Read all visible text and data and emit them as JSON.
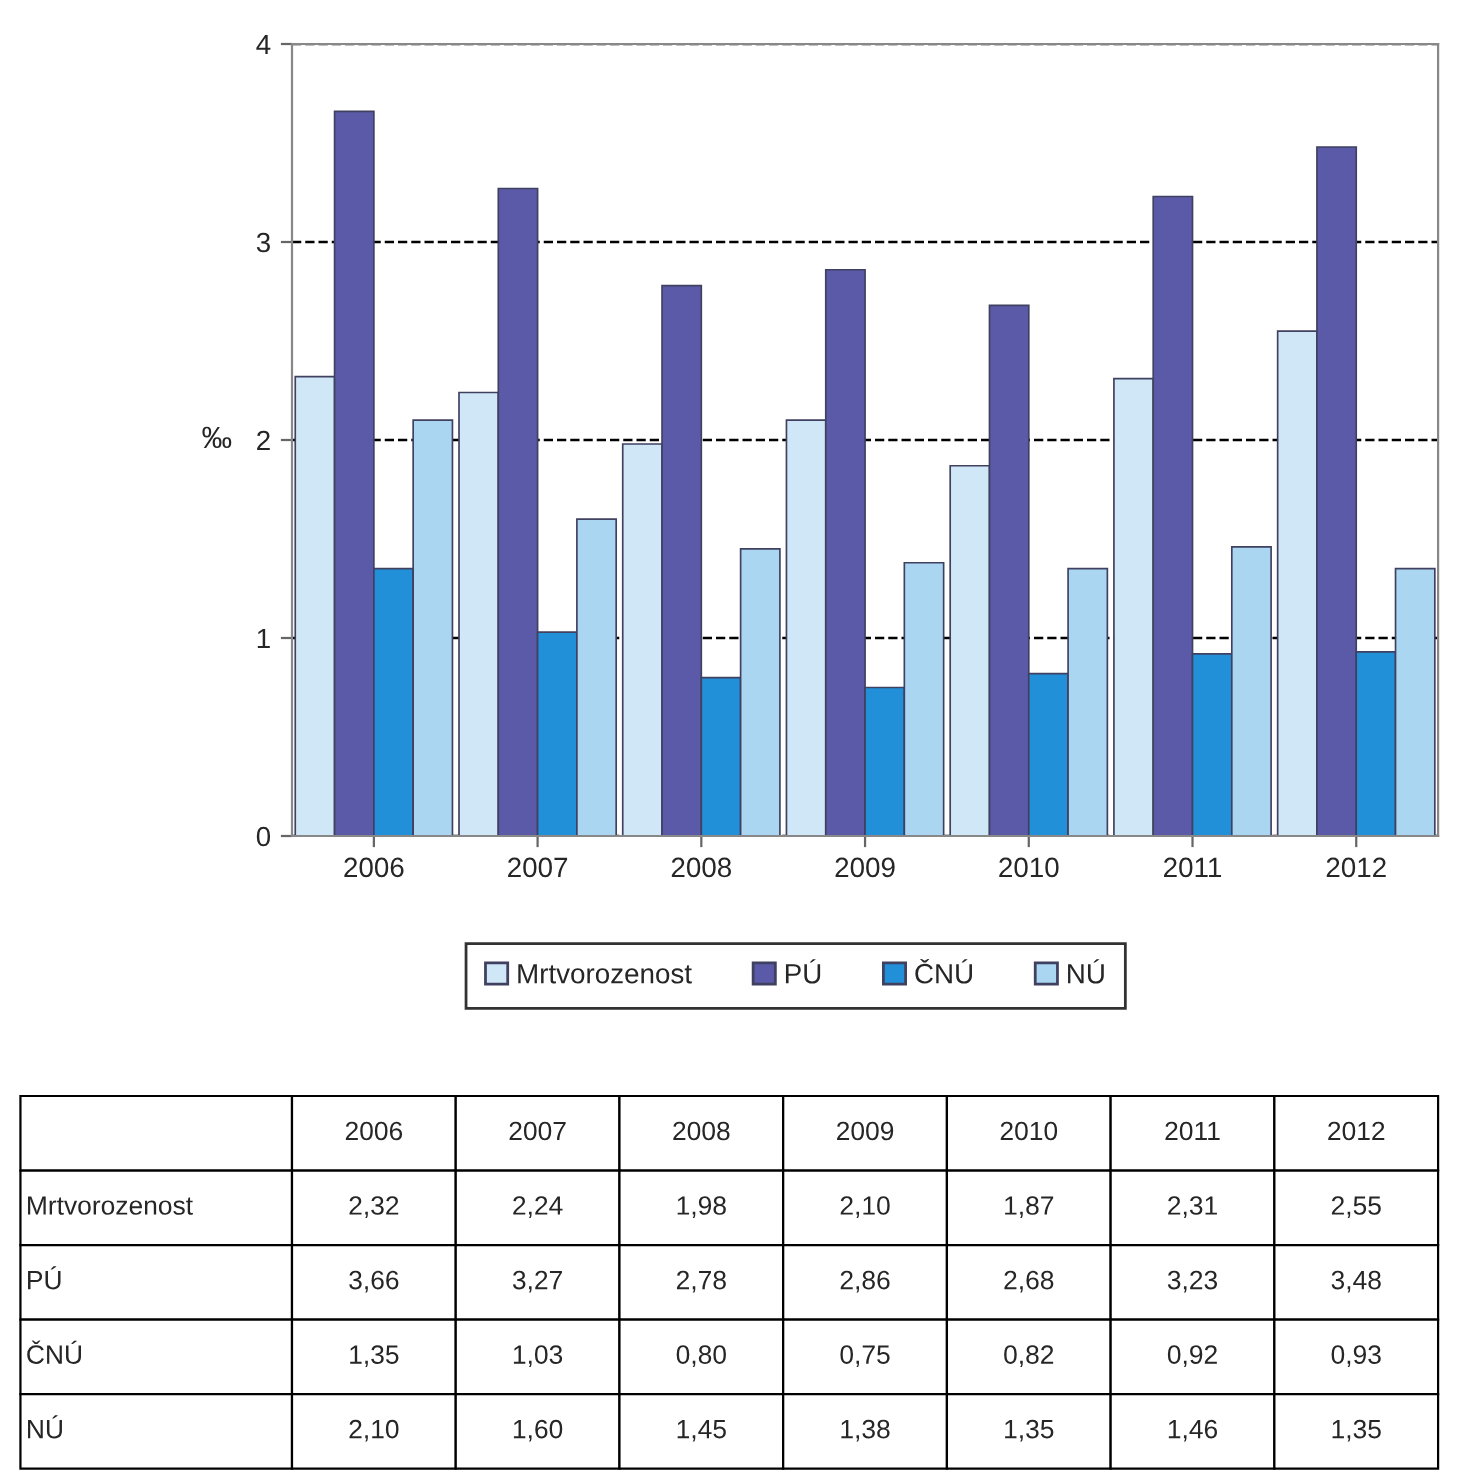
{
  "chart_data": {
    "type": "bar",
    "ylabel": "‰",
    "categories": [
      "2006",
      "2007",
      "2008",
      "2009",
      "2010",
      "2011",
      "2012"
    ],
    "series": [
      {
        "name": "Mrtvorozenost",
        "color": "#cfe7f6",
        "values": [
          2.32,
          2.24,
          1.98,
          2.1,
          1.87,
          2.31,
          2.55
        ],
        "value_labels": [
          "2,32",
          "2,24",
          "1,98",
          "2,10",
          "1,87",
          "2,31",
          "2,55"
        ]
      },
      {
        "name": "PÚ",
        "color": "#5a5aa8",
        "values": [
          3.66,
          3.27,
          2.78,
          2.86,
          2.68,
          3.23,
          3.48
        ],
        "value_labels": [
          "3,66",
          "3,27",
          "2,78",
          "2,86",
          "2,68",
          "3,23",
          "3,48"
        ]
      },
      {
        "name": "ČNÚ",
        "color": "#2290d8",
        "values": [
          1.35,
          1.03,
          0.8,
          0.75,
          0.82,
          0.92,
          0.93
        ],
        "value_labels": [
          "1,35",
          "1,03",
          "0,80",
          "0,75",
          "0,82",
          "0,92",
          "0,93"
        ]
      },
      {
        "name": "NÚ",
        "color": "#aad6f2",
        "values": [
          2.1,
          1.6,
          1.45,
          1.38,
          1.35,
          1.46,
          1.35
        ],
        "value_labels": [
          "2,10",
          "1,60",
          "1,45",
          "1,38",
          "1,35",
          "1,46",
          "1,35"
        ]
      }
    ],
    "ylim": [
      0,
      4
    ],
    "yticks": [
      0,
      1,
      2,
      3,
      4
    ],
    "grid": "y",
    "legend": "bottom"
  }
}
